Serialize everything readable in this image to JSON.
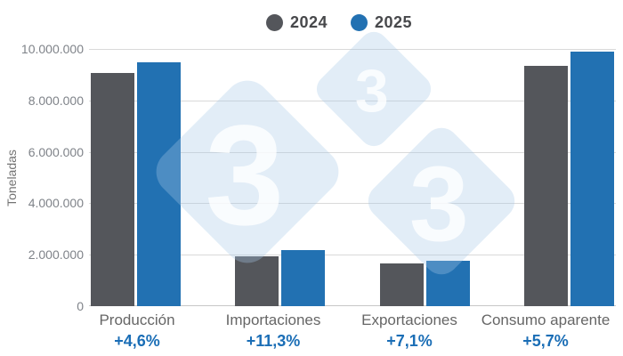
{
  "legend": {
    "items": [
      {
        "label": "2024",
        "color": "#54565B"
      },
      {
        "label": "2025",
        "color": "#2271B2"
      }
    ]
  },
  "y_axis": {
    "title": "Toneladas",
    "ticks": [
      "10.000.000",
      "8.000.000",
      "6.000.000",
      "4.000.000",
      "2.000.000",
      "0"
    ]
  },
  "x_axis": {
    "categories": [
      "Producción",
      "Importaciones",
      "Exportaciones",
      "Consumo aparente"
    ],
    "variation_labels": [
      "+4,6%",
      "+11,3%",
      "+7,1%",
      "+5,7%"
    ]
  },
  "watermark": {
    "digit": "3"
  },
  "colors": {
    "bar_2024": "#54565B",
    "bar_2025": "#2271B2",
    "variation_text": "#1B6EB6",
    "gridline": "#D9D9D9"
  },
  "chart_data": {
    "type": "bar",
    "title": "",
    "categories": [
      "Producción",
      "Importaciones",
      "Exportaciones",
      "Consumo aparente"
    ],
    "series": [
      {
        "name": "2024",
        "color": "#54565B",
        "values": [
          9050000,
          1950000,
          1660000,
          9350000
        ]
      },
      {
        "name": "2025",
        "color": "#2271B2",
        "values": [
          9466000,
          2170000,
          1778000,
          9883000
        ]
      }
    ],
    "variation_labels": [
      "+4,6%",
      "+11,3%",
      "+7,1%",
      "+5,7%"
    ],
    "xlabel": "",
    "ylabel": "Toneladas",
    "ylim": [
      0,
      10000000
    ],
    "yticks": [
      0,
      2000000,
      4000000,
      6000000,
      8000000,
      10000000
    ],
    "grid": true,
    "legend_position": "top"
  }
}
